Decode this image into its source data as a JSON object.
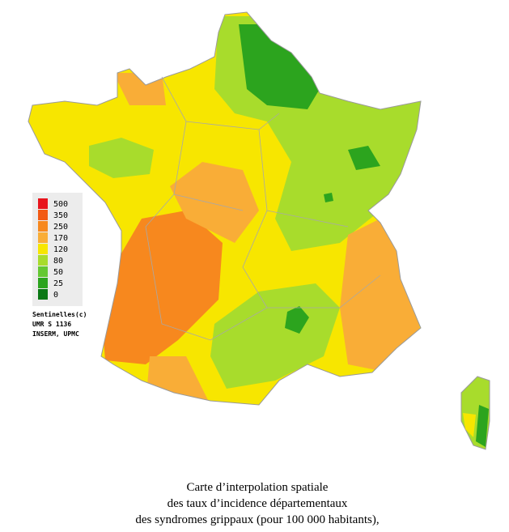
{
  "legend": {
    "items": [
      {
        "label": "500",
        "color": "#e8141c"
      },
      {
        "label": "350",
        "color": "#f25a14"
      },
      {
        "label": "250",
        "color": "#f7881e"
      },
      {
        "label": "170",
        "color": "#f9ad37"
      },
      {
        "label": "120",
        "color": "#f7e600"
      },
      {
        "label": "80",
        "color": "#a8dc2c"
      },
      {
        "label": "50",
        "color": "#64c832"
      },
      {
        "label": "25",
        "color": "#2ca41e"
      },
      {
        "label": "0",
        "color": "#0a7814"
      }
    ]
  },
  "credits": [
    "Sentinelles(c)",
    "UMR S 1136",
    "INSERM, UPMC"
  ],
  "caption": [
    "Carte d’interpolation spatiale",
    "des taux d’incidence départementaux",
    "des syndromes grippaux (pour 100 000 habitants),"
  ]
}
